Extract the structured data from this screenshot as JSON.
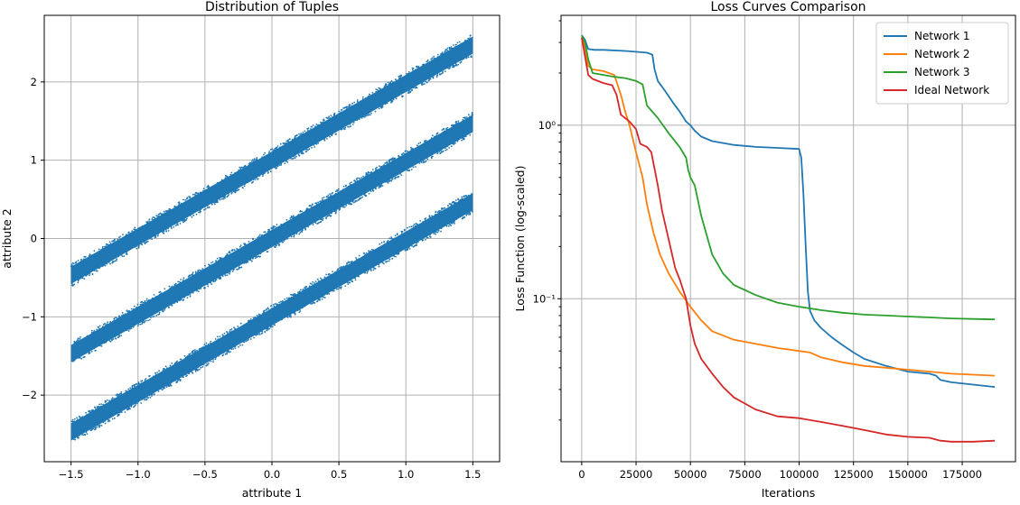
{
  "chart_data": [
    {
      "type": "scatter",
      "title": "Distribution of Tuples",
      "xlabel": "attribute 1",
      "ylabel": "attribute 2",
      "xlim": [
        -1.7,
        1.7
      ],
      "ylim": [
        -2.85,
        2.85
      ],
      "xticks": [
        -1.5,
        -1.0,
        -0.5,
        0.0,
        0.5,
        1.0,
        1.5
      ],
      "xtick_labels": [
        "−1.5",
        "−1.0",
        "−0.5",
        "0.0",
        "0.5",
        "1.0",
        "1.5"
      ],
      "yticks": [
        -2,
        -1,
        0,
        1,
        2
      ],
      "ytick_labels": [
        "−2",
        "−1",
        "0",
        "1",
        "2"
      ],
      "grid": true,
      "color": "#1f77b4",
      "bands": [
        {
          "x_range": [
            -1.5,
            1.5
          ],
          "center_line": {
            "slope": 0.98,
            "intercept": 1.0
          },
          "thickness": 0.22
        },
        {
          "x_range": [
            -1.5,
            1.5
          ],
          "center_line": {
            "slope": 0.98,
            "intercept": 0.0
          },
          "thickness": 0.22
        },
        {
          "x_range": [
            -1.5,
            1.5
          ],
          "center_line": {
            "slope": 0.98,
            "intercept": -1.0
          },
          "thickness": 0.22
        }
      ]
    },
    {
      "type": "line",
      "title": "Loss Curves Comparison",
      "xlabel": "Iterations",
      "ylabel": "Loss Function (log-scaled)",
      "yscale": "log",
      "xlim": [
        -9500,
        199500
      ],
      "ylim": [
        0.0115,
        4.3
      ],
      "xticks": [
        0,
        25000,
        50000,
        75000,
        100000,
        125000,
        150000,
        175000
      ],
      "xtick_labels": [
        "0",
        "25000",
        "50000",
        "75000",
        "100000",
        "125000",
        "150000",
        "175000"
      ],
      "yticks": [
        0.1,
        1
      ],
      "ytick_labels": [
        "10⁻¹",
        "10⁰"
      ],
      "grid": true,
      "legend": "top-right",
      "series": [
        {
          "name": "Network 1",
          "color": "#1f77b4",
          "x": [
            0,
            1500,
            3000,
            6000,
            10000,
            20000,
            30000,
            32500,
            33500,
            35000,
            38000,
            42000,
            45000,
            48000,
            50000,
            52000,
            55000,
            60000,
            70000,
            80000,
            90000,
            100000,
            101000,
            102000,
            103000,
            104000,
            105000,
            107000,
            110000,
            115000,
            120000,
            125000,
            130000,
            140000,
            150000,
            160000,
            163000,
            165000,
            170000,
            180000,
            190000
          ],
          "y": [
            3.3,
            3.1,
            2.75,
            2.72,
            2.72,
            2.68,
            2.62,
            2.55,
            2.1,
            1.8,
            1.6,
            1.35,
            1.2,
            1.05,
            1.0,
            0.93,
            0.86,
            0.81,
            0.77,
            0.75,
            0.74,
            0.73,
            0.65,
            0.4,
            0.2,
            0.11,
            0.085,
            0.075,
            0.068,
            0.06,
            0.054,
            0.049,
            0.045,
            0.041,
            0.038,
            0.037,
            0.036,
            0.034,
            0.033,
            0.032,
            0.031
          ]
        },
        {
          "name": "Network 2",
          "color": "#ff7f0e",
          "x": [
            0,
            1500,
            3000,
            5000,
            10000,
            15000,
            18000,
            20000,
            22000,
            25000,
            28000,
            30000,
            33000,
            36000,
            40000,
            45000,
            50000,
            55000,
            60000,
            70000,
            80000,
            90000,
            100000,
            105000,
            110000,
            120000,
            130000,
            140000,
            150000,
            160000,
            170000,
            180000,
            190000
          ],
          "y": [
            3.2,
            2.8,
            2.2,
            2.1,
            2.05,
            1.95,
            1.5,
            1.2,
            1.0,
            0.7,
            0.5,
            0.35,
            0.24,
            0.18,
            0.14,
            0.11,
            0.09,
            0.075,
            0.065,
            0.058,
            0.055,
            0.052,
            0.05,
            0.049,
            0.046,
            0.043,
            0.041,
            0.04,
            0.039,
            0.038,
            0.037,
            0.0365,
            0.036
          ]
        },
        {
          "name": "Network 3",
          "color": "#2ca02c",
          "x": [
            0,
            1500,
            3000,
            5000,
            10000,
            15000,
            20000,
            25000,
            28000,
            30000,
            35000,
            40000,
            45000,
            48000,
            49000,
            50000,
            52000,
            55000,
            60000,
            65000,
            70000,
            80000,
            90000,
            100000,
            110000,
            120000,
            130000,
            140000,
            150000,
            160000,
            170000,
            180000,
            190000
          ],
          "y": [
            3.3,
            3.0,
            2.4,
            2.0,
            1.95,
            1.9,
            1.87,
            1.8,
            1.72,
            1.3,
            1.1,
            0.9,
            0.75,
            0.65,
            0.55,
            0.5,
            0.45,
            0.3,
            0.18,
            0.14,
            0.12,
            0.105,
            0.095,
            0.09,
            0.086,
            0.083,
            0.081,
            0.08,
            0.079,
            0.078,
            0.077,
            0.0765,
            0.076
          ]
        },
        {
          "name": "Ideal Network",
          "color": "#d62728",
          "x": [
            0,
            1500,
            3000,
            5000,
            10000,
            14000,
            16000,
            18000,
            22000,
            25000,
            27000,
            30000,
            32000,
            35000,
            37000,
            40000,
            43000,
            45000,
            48000,
            50000,
            52000,
            55000,
            60000,
            65000,
            70000,
            80000,
            90000,
            100000,
            110000,
            120000,
            130000,
            140000,
            150000,
            160000,
            165000,
            170000,
            180000,
            190000
          ],
          "y": [
            3.2,
            2.5,
            1.95,
            1.85,
            1.75,
            1.7,
            1.5,
            1.15,
            1.05,
            0.95,
            0.78,
            0.75,
            0.7,
            0.45,
            0.32,
            0.22,
            0.15,
            0.13,
            0.1,
            0.07,
            0.055,
            0.045,
            0.037,
            0.031,
            0.027,
            0.023,
            0.021,
            0.0205,
            0.0195,
            0.0185,
            0.0175,
            0.0165,
            0.016,
            0.0158,
            0.0152,
            0.015,
            0.015,
            0.0152
          ]
        }
      ]
    }
  ]
}
